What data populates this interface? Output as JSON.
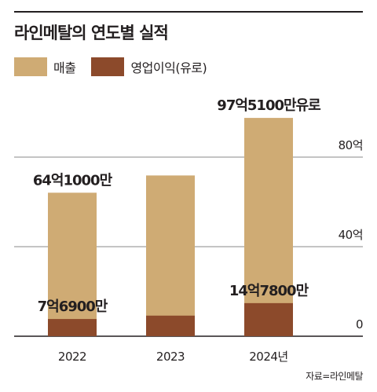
{
  "title": "라인메탈의 연도별 실적",
  "legend": {
    "revenue": "매출",
    "operating_profit": "영업이익(유로)"
  },
  "colors": {
    "revenue": "#cfab74",
    "operating_profit": "#8c4a2b",
    "grid": "#8a8a8a",
    "text": "#231f20"
  },
  "source": "자료=라인메탈",
  "chart_data": {
    "type": "bar",
    "stacked": false,
    "categories": [
      "2022",
      "2023",
      "2024년"
    ],
    "series": [
      {
        "name": "매출",
        "values": [
          64.1,
          71.8,
          97.51
        ]
      },
      {
        "name": "영업이익(유로)",
        "values": [
          7.69,
          9.2,
          14.78
        ]
      }
    ],
    "unit": "억",
    "ylim": [
      0,
      100
    ],
    "yticks": [
      {
        "value": 0,
        "label": "0"
      },
      {
        "value": 40,
        "label": "40억"
      },
      {
        "value": 80,
        "label": "80억"
      }
    ],
    "grid": true,
    "data_labels": [
      {
        "series": 0,
        "index": 0,
        "text": "64억1000만"
      },
      {
        "series": 0,
        "index": 2,
        "text": "97억5100만유로"
      },
      {
        "series": 1,
        "index": 0,
        "text": "7억6900만"
      },
      {
        "series": 1,
        "index": 2,
        "text": "14억7800만"
      }
    ]
  }
}
